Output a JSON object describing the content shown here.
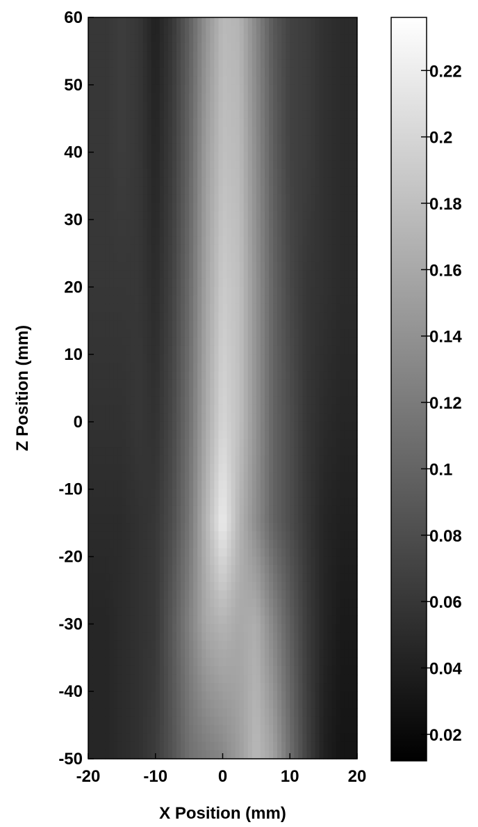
{
  "chart_data": {
    "type": "heatmap",
    "title": "",
    "xlabel": "X Position (mm)",
    "ylabel": "Z Position (mm)",
    "xlim": [
      -20,
      20
    ],
    "ylim": [
      -50,
      60
    ],
    "x_ticks": [
      "-20",
      "-10",
      "0",
      "10",
      "20"
    ],
    "y_ticks": [
      "60",
      "50",
      "40",
      "30",
      "20",
      "10",
      "0",
      "-10",
      "-20",
      "-30",
      "-40",
      "-50"
    ],
    "colorbar": {
      "range": [
        0.012,
        0.236
      ],
      "ticks": [
        "0.22",
        "0.2",
        "0.18",
        "0.16",
        "0.14",
        "0.12",
        "0.1",
        "0.08",
        "0.06",
        "0.04",
        "0.02"
      ],
      "colormap": "grayscale",
      "low_color": "#000000",
      "high_color": "#ffffff"
    },
    "grid": false,
    "x_profile_mm": [
      -20,
      -17.5,
      -15,
      -12.5,
      -10,
      -7.5,
      -5,
      -2.5,
      0,
      2.5,
      5,
      7.5,
      10,
      12.5,
      15,
      17.5,
      20
    ],
    "z_levels": [
      {
        "z": 60,
        "values": [
          0.06,
          0.06,
          0.065,
          0.06,
          0.04,
          0.06,
          0.095,
          0.14,
          0.175,
          0.17,
          0.13,
          0.09,
          0.07,
          0.065,
          0.055,
          0.05,
          0.05
        ]
      },
      {
        "z": 40,
        "values": [
          0.06,
          0.06,
          0.065,
          0.06,
          0.045,
          0.065,
          0.1,
          0.15,
          0.18,
          0.175,
          0.135,
          0.095,
          0.07,
          0.065,
          0.055,
          0.05,
          0.05
        ]
      },
      {
        "z": 20,
        "values": [
          0.06,
          0.06,
          0.06,
          0.06,
          0.05,
          0.07,
          0.105,
          0.155,
          0.19,
          0.18,
          0.14,
          0.1,
          0.075,
          0.06,
          0.055,
          0.05,
          0.05
        ]
      },
      {
        "z": 0,
        "values": [
          0.055,
          0.055,
          0.055,
          0.06,
          0.055,
          0.075,
          0.11,
          0.16,
          0.2,
          0.18,
          0.14,
          0.1,
          0.08,
          0.06,
          0.05,
          0.045,
          0.045
        ]
      },
      {
        "z": -15,
        "values": [
          0.05,
          0.05,
          0.05,
          0.055,
          0.06,
          0.08,
          0.115,
          0.17,
          0.22,
          0.17,
          0.135,
          0.1,
          0.08,
          0.06,
          0.045,
          0.04,
          0.04
        ]
      },
      {
        "z": -30,
        "values": [
          0.045,
          0.045,
          0.05,
          0.055,
          0.06,
          0.09,
          0.125,
          0.16,
          0.17,
          0.16,
          0.165,
          0.13,
          0.095,
          0.065,
          0.045,
          0.035,
          0.035
        ]
      },
      {
        "z": -50,
        "values": [
          0.045,
          0.045,
          0.05,
          0.055,
          0.065,
          0.085,
          0.11,
          0.12,
          0.13,
          0.15,
          0.175,
          0.155,
          0.11,
          0.07,
          0.04,
          0.03,
          0.03
        ]
      }
    ]
  }
}
